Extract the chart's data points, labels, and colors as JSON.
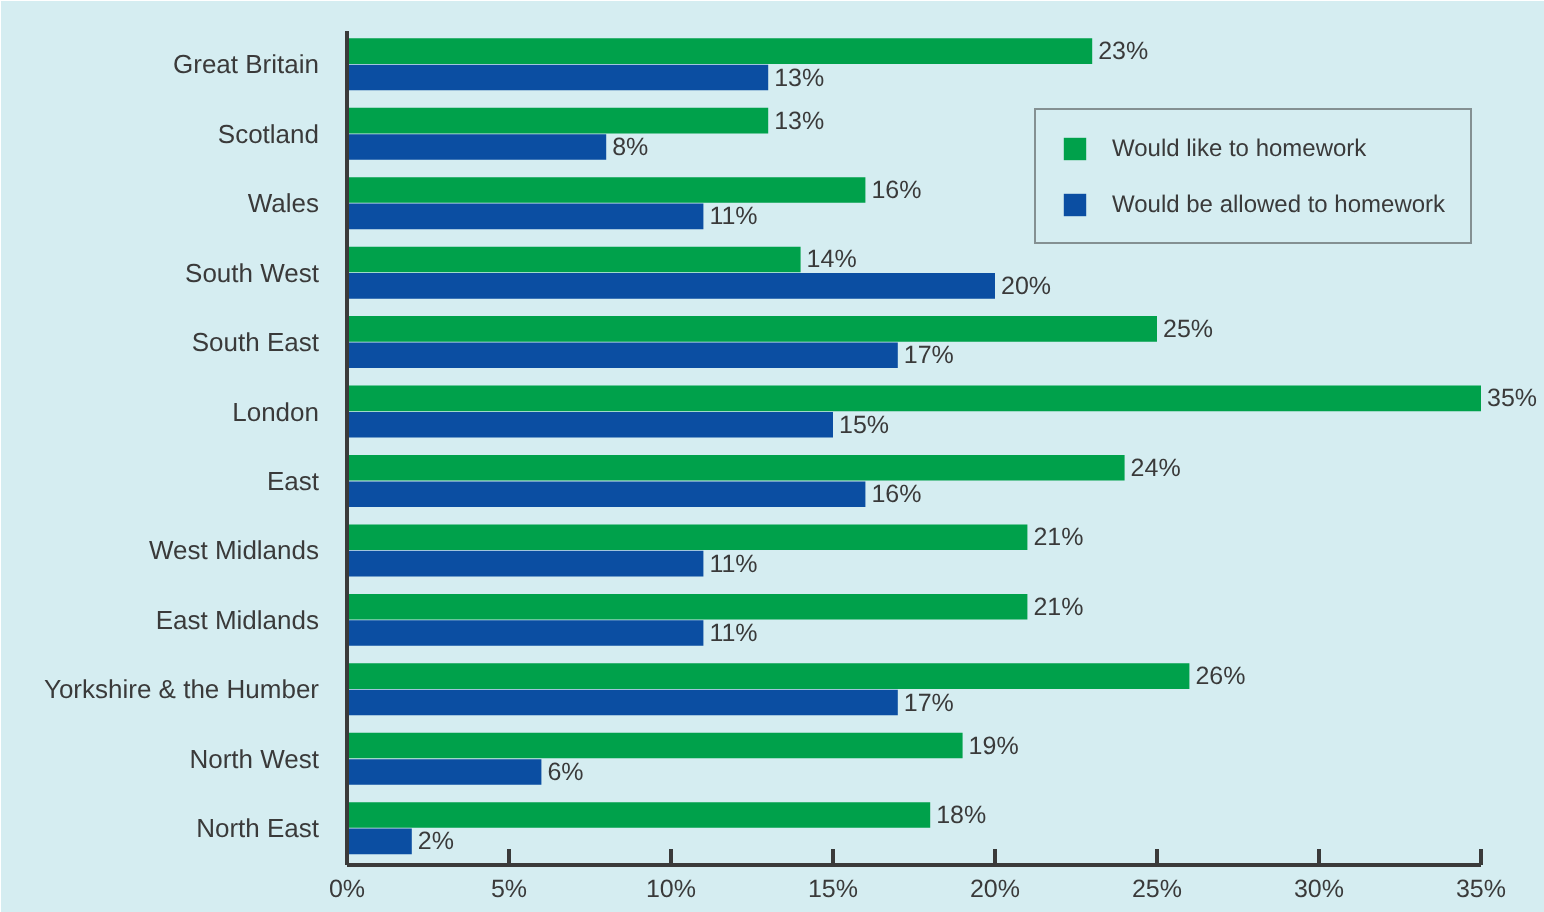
{
  "chart_data": {
    "type": "bar",
    "orientation": "horizontal",
    "categories": [
      "Great Britain",
      "Scotland",
      "Wales",
      "South West",
      "South East",
      "London",
      "East",
      "West Midlands",
      "East Midlands",
      "Yorkshire & the Humber",
      "North West",
      "North East"
    ],
    "series": [
      {
        "name": "Would like to homework",
        "color": "#00a14b",
        "values": [
          23,
          13,
          16,
          14,
          25,
          35,
          24,
          21,
          21,
          26,
          19,
          18
        ],
        "value_labels": [
          "23%",
          "13%",
          "16%",
          "14%",
          "25%",
          "35%",
          "24%",
          "21%",
          "21%",
          "26%",
          "19%",
          "18%"
        ]
      },
      {
        "name": "Would be allowed to homework",
        "color": "#0b4ea2",
        "values": [
          13,
          8,
          11,
          20,
          17,
          15,
          16,
          11,
          11,
          17,
          6,
          2
        ],
        "value_labels": [
          "13%",
          "8%",
          "11%",
          "20%",
          "17%",
          "15%",
          "16%",
          "11%",
          "11%",
          "17%",
          "6%",
          "2%"
        ]
      }
    ],
    "xlim": [
      0,
      35
    ],
    "xticks": [
      {
        "value": 0,
        "label": "0%"
      },
      {
        "value": 5,
        "label": "5%"
      },
      {
        "value": 10,
        "label": "10%"
      },
      {
        "value": 15,
        "label": "15%"
      },
      {
        "value": 20,
        "label": "20%"
      },
      {
        "value": 25,
        "label": "25%"
      },
      {
        "value": 30,
        "label": "30%"
      },
      {
        "value": 35,
        "label": "35%"
      }
    ],
    "legend": "top right"
  }
}
